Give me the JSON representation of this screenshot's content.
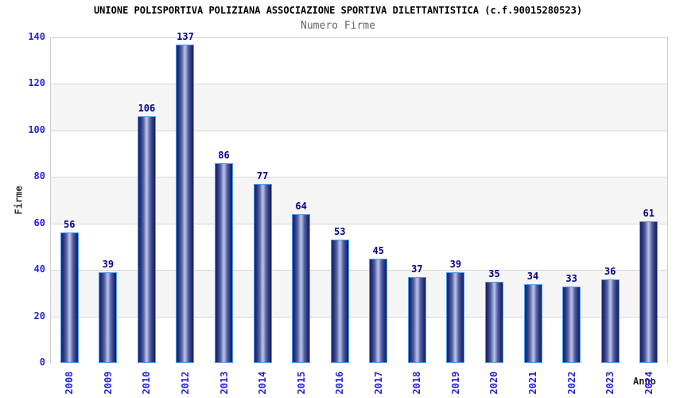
{
  "chart_data": {
    "type": "bar",
    "title": "UNIONE POLISPORTIVA POLIZIANA ASSOCIAZIONE SPORTIVA DILETTANTISTICA (c.f.90015280523)",
    "subtitle": "Numero Firme",
    "categories": [
      "2008",
      "2009",
      "2010",
      "2012",
      "2013",
      "2014",
      "2015",
      "2016",
      "2017",
      "2018",
      "2019",
      "2020",
      "2021",
      "2022",
      "2023",
      "2024"
    ],
    "values": [
      56,
      39,
      106,
      137,
      86,
      77,
      64,
      53,
      45,
      37,
      39,
      35,
      34,
      33,
      36,
      61
    ],
    "xlabel": "Anno",
    "ylabel": "Firme",
    "ylim": [
      0,
      140
    ],
    "yticks": [
      0,
      20,
      40,
      60,
      80,
      100,
      120,
      140
    ],
    "grid": true,
    "legend": "none",
    "band_colors": [
      "#ffffff",
      "#f5f5f5"
    ],
    "colors": {
      "axis_tick_label": "#2424d6",
      "value_label": "#00008b",
      "bar_border": "#4d9ef0",
      "bar_dark": "#141e63",
      "bar_light": "#bcc4ea",
      "gridline": "#d9d9d9",
      "plot_border": "#cccccc",
      "title": "#000000",
      "subtitle": "#666666",
      "axis_title": "#333333"
    }
  }
}
